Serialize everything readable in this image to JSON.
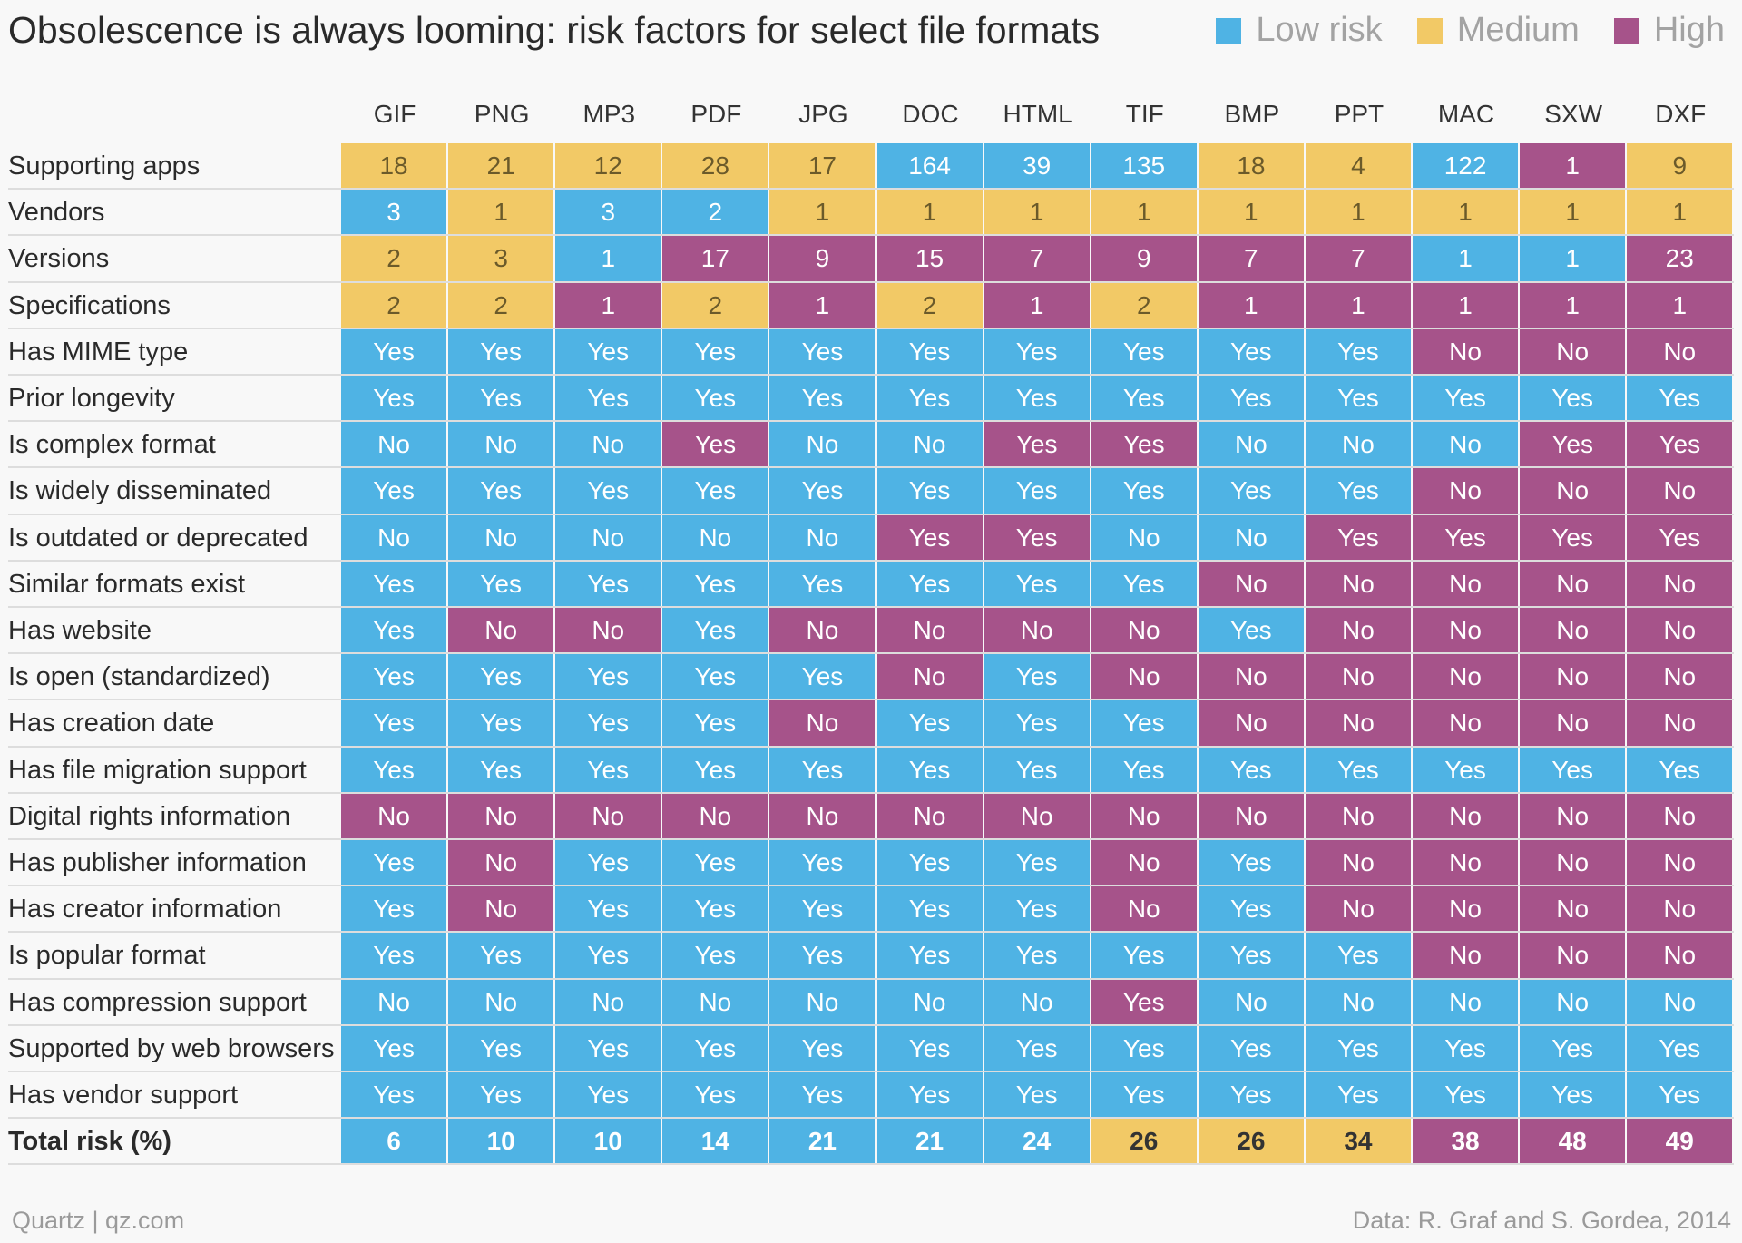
{
  "title": "Obsolescence is always looming: risk factors for select file formats",
  "legend": [
    {
      "label": "Low risk",
      "level": "low"
    },
    {
      "label": "Medium",
      "level": "med"
    },
    {
      "label": "High",
      "level": "high"
    }
  ],
  "colors": {
    "low": "#4fb3e4",
    "med": "#f2c966",
    "high": "#a6538a"
  },
  "footer": {
    "source": "Quartz | qz.com",
    "credit": "Data: R. Graf and S. Gordea, 2014"
  },
  "chart_data": {
    "type": "table",
    "title": "Obsolescence is always looming: risk factors for select file formats",
    "columns": [
      "GIF",
      "PNG",
      "MP3",
      "PDF",
      "JPG",
      "DOC",
      "HTML",
      "TIF",
      "BMP",
      "PPT",
      "MAC",
      "SXW",
      "DXF"
    ],
    "rows": [
      {
        "label": "Supporting apps",
        "values": [
          "18",
          "21",
          "12",
          "28",
          "17",
          "164",
          "39",
          "135",
          "18",
          "4",
          "122",
          "1",
          "9"
        ],
        "levels": [
          "med",
          "med",
          "med",
          "med",
          "med",
          "low",
          "low",
          "low",
          "med",
          "med",
          "low",
          "high",
          "med"
        ]
      },
      {
        "label": "Vendors",
        "values": [
          "3",
          "1",
          "3",
          "2",
          "1",
          "1",
          "1",
          "1",
          "1",
          "1",
          "1",
          "1",
          "1"
        ],
        "levels": [
          "low",
          "med",
          "low",
          "low",
          "med",
          "med",
          "med",
          "med",
          "med",
          "med",
          "med",
          "med",
          "med"
        ]
      },
      {
        "label": "Versions",
        "values": [
          "2",
          "3",
          "1",
          "17",
          "9",
          "15",
          "7",
          "9",
          "7",
          "7",
          "1",
          "1",
          "23"
        ],
        "levels": [
          "med",
          "med",
          "low",
          "high",
          "high",
          "high",
          "high",
          "high",
          "high",
          "high",
          "low",
          "low",
          "high"
        ]
      },
      {
        "label": "Specifications",
        "values": [
          "2",
          "2",
          "1",
          "2",
          "1",
          "2",
          "1",
          "2",
          "1",
          "1",
          "1",
          "1",
          "1"
        ],
        "levels": [
          "med",
          "med",
          "high",
          "med",
          "high",
          "med",
          "high",
          "med",
          "high",
          "high",
          "high",
          "high",
          "high"
        ]
      },
      {
        "label": "Has MIME type",
        "values": [
          "Yes",
          "Yes",
          "Yes",
          "Yes",
          "Yes",
          "Yes",
          "Yes",
          "Yes",
          "Yes",
          "Yes",
          "No",
          "No",
          "No"
        ],
        "levels": [
          "low",
          "low",
          "low",
          "low",
          "low",
          "low",
          "low",
          "low",
          "low",
          "low",
          "high",
          "high",
          "high"
        ]
      },
      {
        "label": "Prior longevity",
        "values": [
          "Yes",
          "Yes",
          "Yes",
          "Yes",
          "Yes",
          "Yes",
          "Yes",
          "Yes",
          "Yes",
          "Yes",
          "Yes",
          "Yes",
          "Yes"
        ],
        "levels": [
          "low",
          "low",
          "low",
          "low",
          "low",
          "low",
          "low",
          "low",
          "low",
          "low",
          "low",
          "low",
          "low"
        ]
      },
      {
        "label": "Is complex format",
        "values": [
          "No",
          "No",
          "No",
          "Yes",
          "No",
          "No",
          "Yes",
          "Yes",
          "No",
          "No",
          "No",
          "Yes",
          "Yes"
        ],
        "levels": [
          "low",
          "low",
          "low",
          "high",
          "low",
          "low",
          "high",
          "high",
          "low",
          "low",
          "low",
          "high",
          "high"
        ]
      },
      {
        "label": "Is widely disseminated",
        "values": [
          "Yes",
          "Yes",
          "Yes",
          "Yes",
          "Yes",
          "Yes",
          "Yes",
          "Yes",
          "Yes",
          "Yes",
          "No",
          "No",
          "No"
        ],
        "levels": [
          "low",
          "low",
          "low",
          "low",
          "low",
          "low",
          "low",
          "low",
          "low",
          "low",
          "high",
          "high",
          "high"
        ]
      },
      {
        "label": "Is outdated or deprecated",
        "values": [
          "No",
          "No",
          "No",
          "No",
          "No",
          "Yes",
          "Yes",
          "No",
          "No",
          "Yes",
          "Yes",
          "Yes",
          "Yes"
        ],
        "levels": [
          "low",
          "low",
          "low",
          "low",
          "low",
          "high",
          "high",
          "low",
          "low",
          "high",
          "high",
          "high",
          "high"
        ]
      },
      {
        "label": "Similar formats exist",
        "values": [
          "Yes",
          "Yes",
          "Yes",
          "Yes",
          "Yes",
          "Yes",
          "Yes",
          "Yes",
          "No",
          "No",
          "No",
          "No",
          "No"
        ],
        "levels": [
          "low",
          "low",
          "low",
          "low",
          "low",
          "low",
          "low",
          "low",
          "high",
          "high",
          "high",
          "high",
          "high"
        ]
      },
      {
        "label": "Has website",
        "values": [
          "Yes",
          "No",
          "No",
          "Yes",
          "No",
          "No",
          "No",
          "No",
          "Yes",
          "No",
          "No",
          "No",
          "No"
        ],
        "levels": [
          "low",
          "high",
          "high",
          "low",
          "high",
          "high",
          "high",
          "high",
          "low",
          "high",
          "high",
          "high",
          "high"
        ]
      },
      {
        "label": "Is open (standardized)",
        "values": [
          "Yes",
          "Yes",
          "Yes",
          "Yes",
          "Yes",
          "No",
          "Yes",
          "No",
          "No",
          "No",
          "No",
          "No",
          "No"
        ],
        "levels": [
          "low",
          "low",
          "low",
          "low",
          "low",
          "high",
          "low",
          "high",
          "high",
          "high",
          "high",
          "high",
          "high"
        ]
      },
      {
        "label": "Has creation date",
        "values": [
          "Yes",
          "Yes",
          "Yes",
          "Yes",
          "No",
          "Yes",
          "Yes",
          "Yes",
          "No",
          "No",
          "No",
          "No",
          "No"
        ],
        "levels": [
          "low",
          "low",
          "low",
          "low",
          "high",
          "low",
          "low",
          "low",
          "high",
          "high",
          "high",
          "high",
          "high"
        ]
      },
      {
        "label": "Has file migration support",
        "values": [
          "Yes",
          "Yes",
          "Yes",
          "Yes",
          "Yes",
          "Yes",
          "Yes",
          "Yes",
          "Yes",
          "Yes",
          "Yes",
          "Yes",
          "Yes"
        ],
        "levels": [
          "low",
          "low",
          "low",
          "low",
          "low",
          "low",
          "low",
          "low",
          "low",
          "low",
          "low",
          "low",
          "low"
        ]
      },
      {
        "label": "Digital rights information",
        "values": [
          "No",
          "No",
          "No",
          "No",
          "No",
          "No",
          "No",
          "No",
          "No",
          "No",
          "No",
          "No",
          "No"
        ],
        "levels": [
          "high",
          "high",
          "high",
          "high",
          "high",
          "high",
          "high",
          "high",
          "high",
          "high",
          "high",
          "high",
          "high"
        ]
      },
      {
        "label": "Has publisher information",
        "values": [
          "Yes",
          "No",
          "Yes",
          "Yes",
          "Yes",
          "Yes",
          "Yes",
          "No",
          "Yes",
          "No",
          "No",
          "No",
          "No"
        ],
        "levels": [
          "low",
          "high",
          "low",
          "low",
          "low",
          "low",
          "low",
          "high",
          "low",
          "high",
          "high",
          "high",
          "high"
        ]
      },
      {
        "label": "Has creator information",
        "values": [
          "Yes",
          "No",
          "Yes",
          "Yes",
          "Yes",
          "Yes",
          "Yes",
          "No",
          "Yes",
          "No",
          "No",
          "No",
          "No"
        ],
        "levels": [
          "low",
          "high",
          "low",
          "low",
          "low",
          "low",
          "low",
          "high",
          "low",
          "high",
          "high",
          "high",
          "high"
        ]
      },
      {
        "label": "Is popular format",
        "values": [
          "Yes",
          "Yes",
          "Yes",
          "Yes",
          "Yes",
          "Yes",
          "Yes",
          "Yes",
          "Yes",
          "Yes",
          "No",
          "No",
          "No"
        ],
        "levels": [
          "low",
          "low",
          "low",
          "low",
          "low",
          "low",
          "low",
          "low",
          "low",
          "low",
          "high",
          "high",
          "high"
        ]
      },
      {
        "label": "Has compression support",
        "values": [
          "No",
          "No",
          "No",
          "No",
          "No",
          "No",
          "No",
          "Yes",
          "No",
          "No",
          "No",
          "No",
          "No"
        ],
        "levels": [
          "low",
          "low",
          "low",
          "low",
          "low",
          "low",
          "low",
          "high",
          "low",
          "low",
          "low",
          "low",
          "low"
        ]
      },
      {
        "label": "Supported by web browsers",
        "values": [
          "Yes",
          "Yes",
          "Yes",
          "Yes",
          "Yes",
          "Yes",
          "Yes",
          "Yes",
          "Yes",
          "Yes",
          "Yes",
          "Yes",
          "Yes"
        ],
        "levels": [
          "low",
          "low",
          "low",
          "low",
          "low",
          "low",
          "low",
          "low",
          "low",
          "low",
          "low",
          "low",
          "low"
        ]
      },
      {
        "label": "Has vendor support",
        "values": [
          "Yes",
          "Yes",
          "Yes",
          "Yes",
          "Yes",
          "Yes",
          "Yes",
          "Yes",
          "Yes",
          "Yes",
          "Yes",
          "Yes",
          "Yes"
        ],
        "levels": [
          "low",
          "low",
          "low",
          "low",
          "low",
          "low",
          "low",
          "low",
          "low",
          "low",
          "low",
          "low",
          "low"
        ]
      },
      {
        "label": "Total risk (%)",
        "values": [
          "6",
          "10",
          "10",
          "14",
          "21",
          "21",
          "24",
          "26",
          "26",
          "34",
          "38",
          "48",
          "49"
        ],
        "levels": [
          "low",
          "low",
          "low",
          "low",
          "low",
          "low",
          "low",
          "med",
          "med",
          "med",
          "high",
          "high",
          "high"
        ],
        "total": true
      }
    ]
  }
}
